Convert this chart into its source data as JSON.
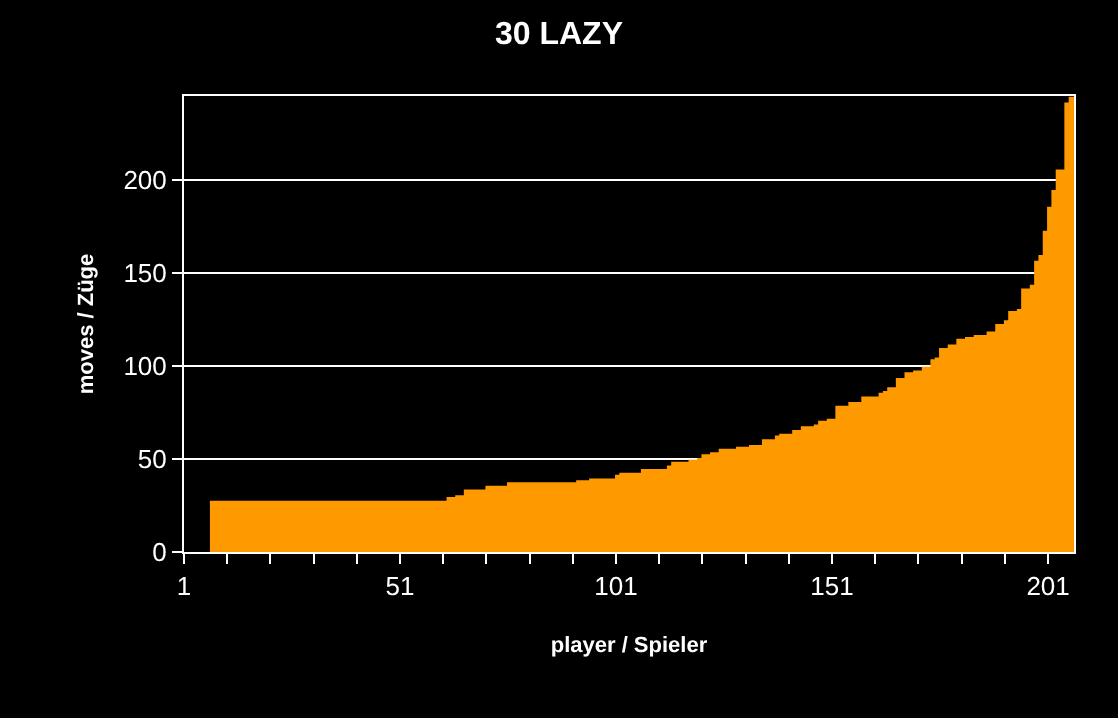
{
  "chart_data": {
    "type": "area",
    "title": "30 LAZY",
    "xlabel": "player / Spieler",
    "ylabel": "moves / Züge",
    "x": [
      7,
      62,
      62,
      64,
      64,
      66,
      66,
      71,
      71,
      76,
      76,
      92,
      92,
      95,
      95,
      101,
      101,
      102,
      102,
      107,
      107,
      113,
      113,
      114,
      114,
      118,
      118,
      120,
      120,
      121,
      121,
      123,
      123,
      125,
      125,
      129,
      129,
      132,
      132,
      135,
      135,
      138,
      138,
      139,
      139,
      142,
      142,
      144,
      144,
      147,
      147,
      148,
      148,
      150,
      150,
      152,
      152,
      155,
      155,
      158,
      158,
      162,
      162,
      163,
      163,
      164,
      164,
      166,
      166,
      168,
      168,
      170,
      170,
      172,
      172,
      174,
      174,
      175,
      175,
      176,
      176,
      178,
      178,
      180,
      180,
      182,
      182,
      184,
      184,
      187,
      187,
      189,
      189,
      191,
      191,
      192,
      192,
      194,
      194,
      195,
      195,
      197,
      197,
      198,
      198,
      199,
      199,
      200,
      200,
      201,
      201,
      202,
      202,
      203,
      203,
      205,
      205,
      206,
      206,
      207
    ],
    "values": [
      27,
      27,
      29,
      29,
      30,
      30,
      33,
      33,
      35,
      35,
      37,
      37,
      38,
      38,
      39,
      39,
      41,
      41,
      42,
      42,
      44,
      44,
      46,
      46,
      48,
      48,
      49,
      49,
      50,
      50,
      52,
      52,
      53,
      53,
      55,
      55,
      56,
      56,
      57,
      57,
      60,
      60,
      62,
      62,
      63,
      63,
      65,
      65,
      67,
      67,
      68,
      68,
      70,
      70,
      71,
      71,
      78,
      78,
      80,
      80,
      83,
      83,
      85,
      85,
      86,
      86,
      88,
      88,
      93,
      93,
      96,
      96,
      97,
      97,
      99,
      99,
      103,
      103,
      104,
      104,
      109,
      109,
      111,
      111,
      114,
      114,
      115,
      115,
      116,
      116,
      118,
      118,
      122,
      122,
      124,
      124,
      129,
      129,
      130,
      130,
      141,
      141,
      143,
      143,
      156,
      156,
      159,
      159,
      172,
      172,
      185,
      185,
      194,
      194,
      205,
      205,
      241,
      241,
      244,
      244
    ],
    "color": "#ff9900",
    "xlim": [
      1,
      207
    ],
    "xticks": [
      1,
      {
        "value": 11,
        "label": null
      },
      {
        "value": 21,
        "label": null
      },
      {
        "value": 31,
        "label": null
      },
      {
        "value": 41,
        "label": null
      },
      51,
      {
        "value": 61,
        "label": null
      },
      {
        "value": 71,
        "label": null
      },
      {
        "value": 81,
        "label": null
      },
      {
        "value": 91,
        "label": null
      },
      101,
      {
        "value": 111,
        "label": null
      },
      {
        "value": 121,
        "label": null
      },
      {
        "value": 131,
        "label": null
      },
      {
        "value": 141,
        "label": null
      },
      151,
      {
        "value": 161,
        "label": null
      },
      {
        "value": 171,
        "label": null
      },
      {
        "value": 181,
        "label": null
      },
      {
        "value": 191,
        "label": null
      },
      201
    ],
    "ylim": [
      0,
      245
    ],
    "yticks": [
      0,
      50,
      100,
      150,
      200
    ],
    "grid": "y",
    "legend": false
  }
}
